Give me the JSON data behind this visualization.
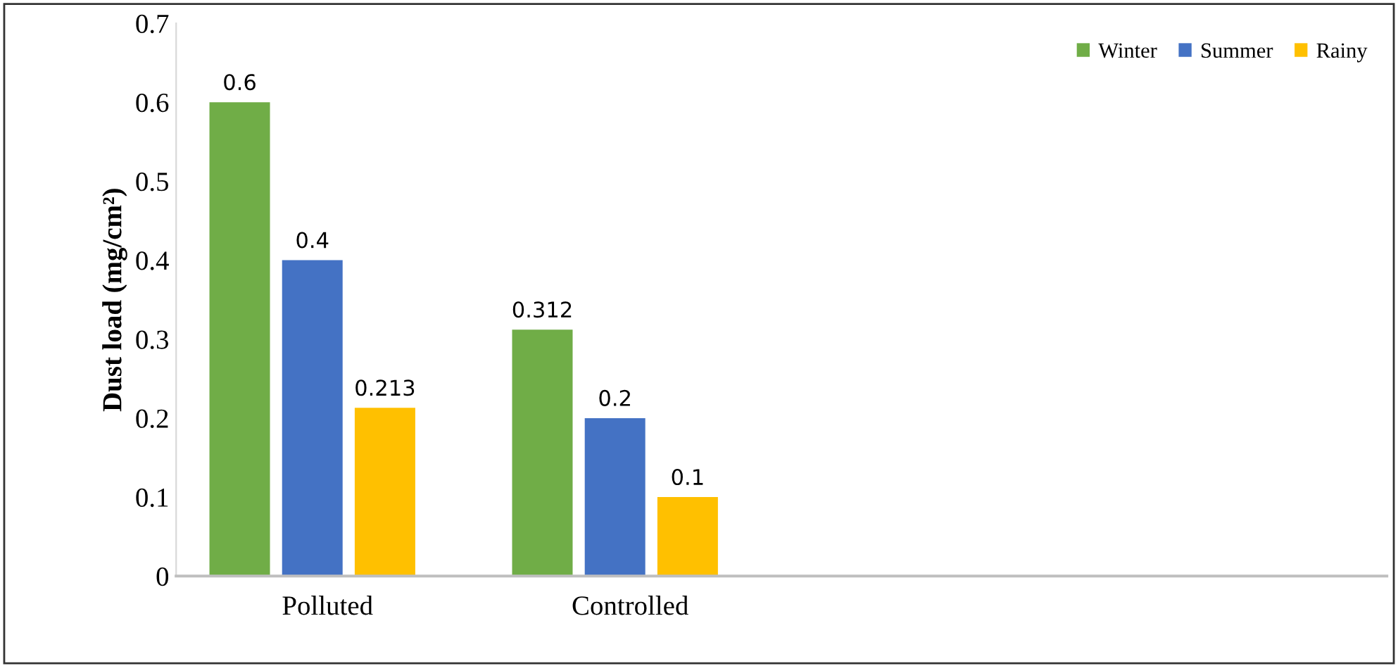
{
  "chart_data": {
    "type": "bar",
    "ylabel": "Dust load (mg/cm²)",
    "categories": [
      "Polluted",
      "Controlled",
      null,
      null
    ],
    "series": [
      {
        "name": "Winter",
        "color": "#70ad47",
        "values": [
          0.6,
          0.312,
          null,
          null
        ]
      },
      {
        "name": "Summer",
        "color": "#4472c4",
        "values": [
          0.4,
          0.2,
          null,
          null
        ]
      },
      {
        "name": "Rainy",
        "color": "#ffc000",
        "values": [
          0.213,
          0.1,
          null,
          null
        ]
      }
    ],
    "ylim": [
      0,
      0.7
    ],
    "yticks": [
      0,
      0.1,
      0.2,
      0.3,
      0.4,
      0.5,
      0.6,
      0.7
    ],
    "data_labels": true,
    "legend": "top right",
    "grid": false
  }
}
